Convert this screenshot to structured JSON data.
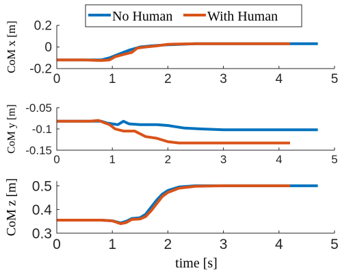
{
  "chart_data": {
    "type": "line",
    "legend": {
      "placement": "top-center",
      "entries": [
        {
          "name": "No Human",
          "color": "#0072BD"
        },
        {
          "name": "With Human",
          "color": "#D95319"
        }
      ]
    },
    "xlabel": "time [s]",
    "charts": [
      {
        "ylabel": "CoM x [m]",
        "xlim": [
          0,
          5
        ],
        "ylim": [
          -0.2,
          0.2
        ],
        "xticks": [
          "0",
          "1",
          "2",
          "3",
          "4",
          "5"
        ],
        "yticks": [
          "-0.2",
          "0",
          "0.2"
        ],
        "ytick_values": [
          -0.2,
          0,
          0.2
        ],
        "series": [
          {
            "name": "No Human",
            "color": "#0072BD",
            "x": [
              0,
              0.5,
              0.8,
              0.95,
              1.1,
              1.3,
              1.5,
              1.7,
              2.0,
              2.5,
              3.0,
              4.0,
              4.7
            ],
            "y": [
              -0.12,
              -0.12,
              -0.12,
              -0.1,
              -0.07,
              -0.03,
              0,
              0.01,
              0.02,
              0.03,
              0.03,
              0.03,
              0.03
            ]
          },
          {
            "name": "With Human",
            "color": "#D95319",
            "x": [
              0,
              0.5,
              0.8,
              0.95,
              1.05,
              1.2,
              1.35,
              1.45,
              1.6,
              1.8,
              2.0,
              2.5,
              3.0,
              3.5,
              4.2
            ],
            "y": [
              -0.12,
              -0.12,
              -0.125,
              -0.12,
              -0.09,
              -0.07,
              -0.05,
              -0.01,
              0,
              0.01,
              0.025,
              0.03,
              0.03,
              0.03,
              0.03
            ]
          }
        ]
      },
      {
        "ylabel": "CoM y [m]",
        "xlim": [
          0,
          5
        ],
        "ylim": [
          -0.15,
          -0.05
        ],
        "xticks": [
          "0",
          "1",
          "2",
          "3",
          "4",
          "5"
        ],
        "yticks": [
          "-0.15",
          "-0.1",
          "-0.05"
        ],
        "ytick_values": [
          -0.15,
          -0.1,
          -0.05
        ],
        "series": [
          {
            "name": "No Human",
            "color": "#0072BD",
            "x": [
              0,
              0.6,
              0.8,
              0.9,
              1.0,
              1.1,
              1.2,
              1.3,
              1.5,
              1.8,
              2.0,
              2.3,
              2.6,
              3.0,
              4.0,
              4.7
            ],
            "y": [
              -0.082,
              -0.082,
              -0.082,
              -0.086,
              -0.088,
              -0.09,
              -0.082,
              -0.088,
              -0.09,
              -0.09,
              -0.092,
              -0.098,
              -0.1,
              -0.102,
              -0.102,
              -0.102
            ]
          },
          {
            "name": "With Human",
            "color": "#D95319",
            "x": [
              0,
              0.6,
              0.75,
              0.85,
              0.95,
              1.05,
              1.2,
              1.4,
              1.6,
              1.8,
              2.0,
              2.2,
              2.5,
              3.0,
              4.2
            ],
            "y": [
              -0.082,
              -0.082,
              -0.08,
              -0.085,
              -0.09,
              -0.1,
              -0.105,
              -0.105,
              -0.118,
              -0.122,
              -0.13,
              -0.133,
              -0.133,
              -0.133,
              -0.133
            ]
          }
        ]
      },
      {
        "ylabel": "CoM z [m]",
        "xlim": [
          0,
          5
        ],
        "ylim": [
          0.3,
          0.52
        ],
        "xticks": [
          "0",
          "1",
          "2",
          "3",
          "4",
          "5"
        ],
        "yticks": [
          "0.3",
          "0.4",
          "0.5"
        ],
        "ytick_values": [
          0.3,
          0.4,
          0.5
        ],
        "series": [
          {
            "name": "No Human",
            "color": "#0072BD",
            "x": [
              0,
              0.8,
              1.0,
              1.15,
              1.25,
              1.35,
              1.5,
              1.6,
              1.7,
              1.8,
              1.9,
              2.0,
              2.2,
              2.5,
              3.0,
              4.0,
              4.7
            ],
            "y": [
              0.355,
              0.355,
              0.352,
              0.343,
              0.35,
              0.362,
              0.365,
              0.38,
              0.41,
              0.44,
              0.465,
              0.48,
              0.495,
              0.5,
              0.5,
              0.5,
              0.5
            ]
          },
          {
            "name": "With Human",
            "color": "#D95319",
            "x": [
              0,
              0.8,
              1.0,
              1.15,
              1.25,
              1.35,
              1.5,
              1.6,
              1.7,
              1.8,
              1.9,
              2.0,
              2.2,
              2.5,
              3.0,
              4.2
            ],
            "y": [
              0.355,
              0.355,
              0.352,
              0.34,
              0.345,
              0.358,
              0.36,
              0.37,
              0.395,
              0.425,
              0.455,
              0.472,
              0.49,
              0.498,
              0.5,
              0.5
            ]
          }
        ]
      }
    ]
  }
}
